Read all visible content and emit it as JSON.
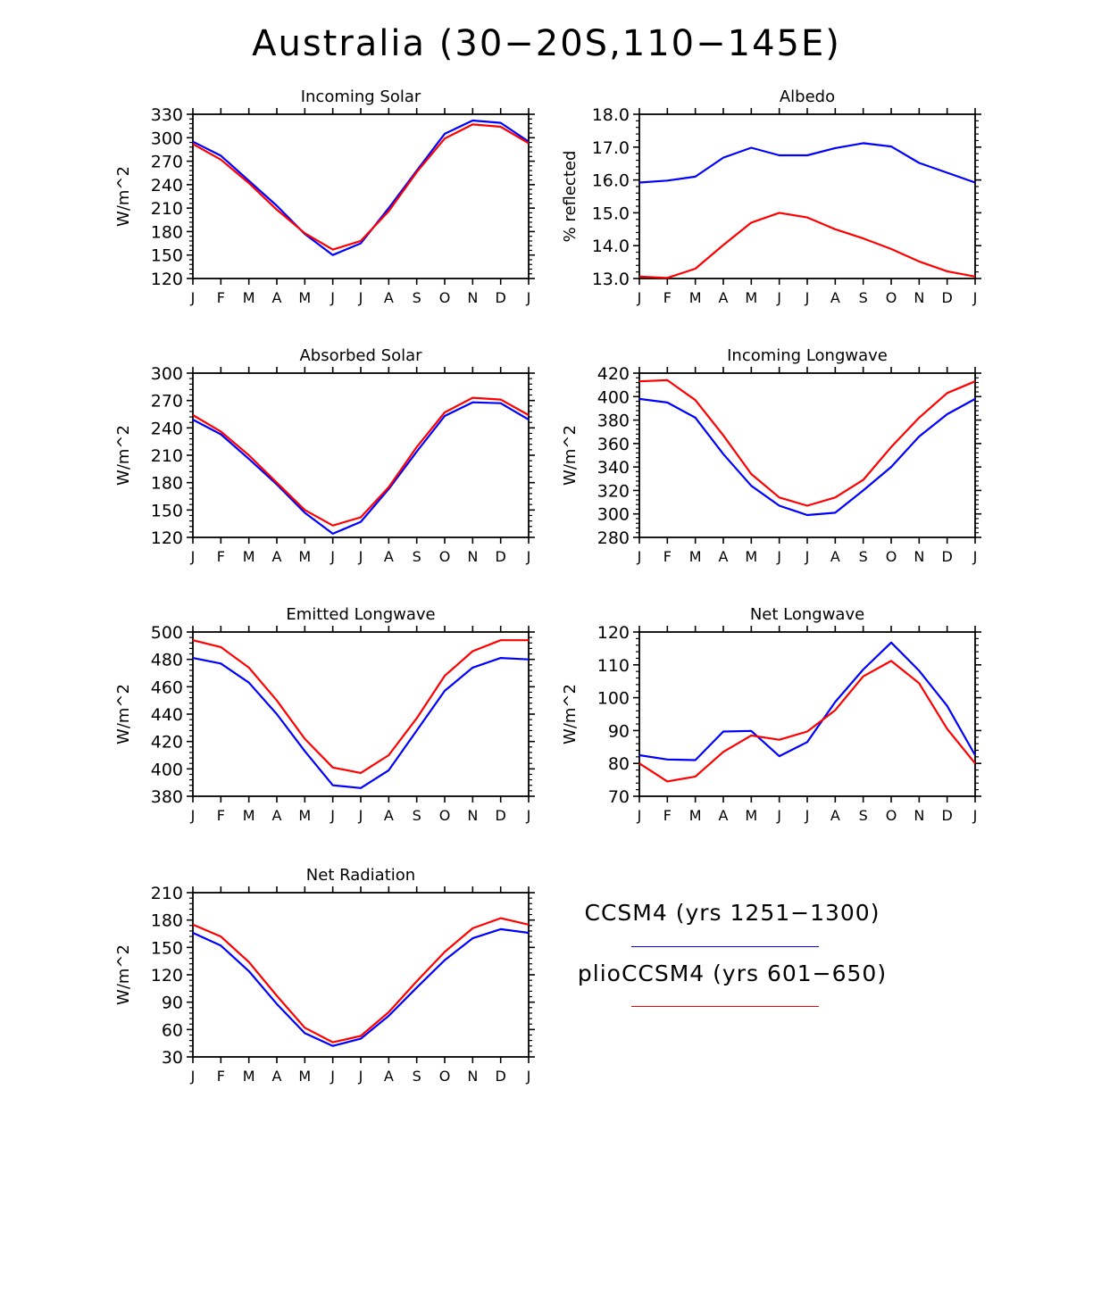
{
  "title": "Australia (30−20S,110−145E)",
  "colors": {
    "ccsm4": "#0000ff",
    "plio": "#ff0000",
    "axis": "#000000"
  },
  "legend": {
    "entries": [
      {
        "label": "CCSM4 (yrs 1251−1300)",
        "color": "#0000ff"
      },
      {
        "label": "plioCCSM4 (yrs 601−650)",
        "color": "#ff0000"
      }
    ]
  },
  "chart_data": [
    {
      "type": "line",
      "title": "Incoming Solar",
      "ylabel": "W/m^2",
      "xlabel": "",
      "categories": [
        "J",
        "F",
        "M",
        "A",
        "M",
        "J",
        "J",
        "A",
        "S",
        "O",
        "N",
        "D",
        "J"
      ],
      "ylim": [
        120,
        330
      ],
      "yticks": [
        120,
        150,
        180,
        210,
        240,
        270,
        300,
        330
      ],
      "ytick_labels": [
        "120",
        "150",
        "180",
        "210",
        "240",
        "270",
        "300",
        "330"
      ],
      "series": [
        {
          "name": "CCSM4 (yrs 1251−1300)",
          "color": "#0000ff",
          "values": [
            295,
            277,
            245,
            213,
            177,
            150,
            165,
            210,
            258,
            305,
            322,
            319,
            295
          ]
        },
        {
          "name": "plioCCSM4 (yrs 601−650)",
          "color": "#ff0000",
          "values": [
            292,
            272,
            242,
            208,
            178,
            157,
            168,
            206,
            256,
            299,
            317,
            314,
            293
          ]
        }
      ]
    },
    {
      "type": "line",
      "title": "Albedo",
      "ylabel": "% reflected",
      "xlabel": "",
      "categories": [
        "J",
        "F",
        "M",
        "A",
        "M",
        "J",
        "J",
        "A",
        "S",
        "O",
        "N",
        "D",
        "J"
      ],
      "ylim": [
        13.0,
        18.0
      ],
      "yticks": [
        13,
        14,
        15,
        16,
        17,
        18
      ],
      "ytick_labels": [
        "13.0",
        "14.0",
        "15.0",
        "16.0",
        "17.0",
        "18.0"
      ],
      "series": [
        {
          "name": "CCSM4 (yrs 1251−1300)",
          "color": "#0000ff",
          "values": [
            15.92,
            15.98,
            16.1,
            16.68,
            16.98,
            16.75,
            16.75,
            16.97,
            17.12,
            17.02,
            16.52,
            16.22,
            15.92
          ]
        },
        {
          "name": "plioCCSM4 (yrs 601−650)",
          "color": "#ff0000",
          "values": [
            13.06,
            13.02,
            13.3,
            14.02,
            14.7,
            15.0,
            14.86,
            14.5,
            14.22,
            13.9,
            13.52,
            13.22,
            13.06
          ]
        }
      ]
    },
    {
      "type": "line",
      "title": "Absorbed Solar",
      "ylabel": "W/m^2",
      "xlabel": "",
      "categories": [
        "J",
        "F",
        "M",
        "A",
        "M",
        "J",
        "J",
        "A",
        "S",
        "O",
        "N",
        "D",
        "J"
      ],
      "ylim": [
        120,
        300
      ],
      "yticks": [
        120,
        150,
        180,
        210,
        240,
        270,
        300
      ],
      "ytick_labels": [
        "120",
        "150",
        "180",
        "210",
        "240",
        "270",
        "300"
      ],
      "series": [
        {
          "name": "CCSM4 (yrs 1251−1300)",
          "color": "#0000ff",
          "values": [
            249,
            233,
            206,
            178,
            147,
            124,
            137,
            173,
            214,
            253,
            268,
            267,
            249
          ]
        },
        {
          "name": "plioCCSM4 (yrs 601−650)",
          "color": "#ff0000",
          "values": [
            254,
            236,
            210,
            180,
            150,
            133,
            142,
            175,
            219,
            257,
            273,
            271,
            254
          ]
        }
      ]
    },
    {
      "type": "line",
      "title": "Incoming Longwave",
      "ylabel": "W/m^2",
      "xlabel": "",
      "categories": [
        "J",
        "F",
        "M",
        "A",
        "M",
        "J",
        "J",
        "A",
        "S",
        "O",
        "N",
        "D",
        "J"
      ],
      "ylim": [
        280,
        420
      ],
      "yticks": [
        280,
        300,
        320,
        340,
        360,
        380,
        400,
        420
      ],
      "ytick_labels": [
        "280",
        "300",
        "320",
        "340",
        "360",
        "380",
        "400",
        "420"
      ],
      "series": [
        {
          "name": "CCSM4 (yrs 1251−1300)",
          "color": "#0000ff",
          "values": [
            398,
            395,
            382,
            351,
            324,
            307,
            299,
            301,
            320,
            340,
            366,
            385,
            398
          ]
        },
        {
          "name": "plioCCSM4 (yrs 601−650)",
          "color": "#ff0000",
          "values": [
            413,
            414,
            397,
            367,
            334,
            314,
            307,
            314,
            329,
            357,
            382,
            403,
            413
          ]
        }
      ]
    },
    {
      "type": "line",
      "title": "Emitted Longwave",
      "ylabel": "W/m^2",
      "xlabel": "",
      "categories": [
        "J",
        "F",
        "M",
        "A",
        "M",
        "J",
        "J",
        "A",
        "S",
        "O",
        "N",
        "D",
        "J"
      ],
      "ylim": [
        380,
        500
      ],
      "yticks": [
        380,
        400,
        420,
        440,
        460,
        480,
        500
      ],
      "ytick_labels": [
        "380",
        "400",
        "420",
        "440",
        "460",
        "480",
        "500"
      ],
      "series": [
        {
          "name": "CCSM4 (yrs 1251−1300)",
          "color": "#0000ff",
          "values": [
            481,
            477,
            463,
            440,
            413,
            388,
            386,
            399,
            428,
            457,
            474,
            481,
            480
          ]
        },
        {
          "name": "plioCCSM4 (yrs 601−650)",
          "color": "#ff0000",
          "values": [
            494,
            489,
            474,
            450,
            422,
            401,
            397,
            410,
            437,
            468,
            486,
            494,
            494
          ]
        }
      ]
    },
    {
      "type": "line",
      "title": "Net Longwave",
      "ylabel": "W/m^2",
      "xlabel": "",
      "categories": [
        "J",
        "F",
        "M",
        "A",
        "M",
        "J",
        "J",
        "A",
        "S",
        "O",
        "N",
        "D",
        "J"
      ],
      "ylim": [
        70,
        120
      ],
      "yticks": [
        70,
        80,
        90,
        100,
        110,
        120
      ],
      "ytick_labels": [
        "70",
        "80",
        "90",
        "100",
        "110",
        "120"
      ],
      "series": [
        {
          "name": "CCSM4 (yrs 1251−1300)",
          "color": "#0000ff",
          "values": [
            82.5,
            81.2,
            81.0,
            89.7,
            89.9,
            82.2,
            86.5,
            98.7,
            108.6,
            116.8,
            108.2,
            97.5,
            82.5
          ]
        },
        {
          "name": "plioCCSM4 (yrs 601−650)",
          "color": "#ff0000",
          "values": [
            80.0,
            74.5,
            76.0,
            83.5,
            88.5,
            87.2,
            89.7,
            96.2,
            106.5,
            111.2,
            104.4,
            90.5,
            80.0
          ]
        }
      ]
    },
    {
      "type": "line",
      "title": "Net Radiation",
      "ylabel": "W/m^2",
      "xlabel": "",
      "categories": [
        "J",
        "F",
        "M",
        "A",
        "M",
        "J",
        "J",
        "A",
        "S",
        "O",
        "N",
        "D",
        "J"
      ],
      "ylim": [
        30,
        210
      ],
      "yticks": [
        30,
        60,
        90,
        120,
        150,
        180,
        210
      ],
      "ytick_labels": [
        "30",
        "60",
        "90",
        "120",
        "150",
        "180",
        "210"
      ],
      "series": [
        {
          "name": "CCSM4 (yrs 1251−1300)",
          "color": "#0000ff",
          "values": [
            166,
            152,
            124,
            88,
            56,
            42,
            50,
            75,
            106,
            136,
            160,
            170,
            166
          ]
        },
        {
          "name": "plioCCSM4 (yrs 601−650)",
          "color": "#ff0000",
          "values": [
            175,
            162,
            134,
            97,
            62,
            46,
            53,
            79,
            113,
            145,
            171,
            182,
            175
          ]
        }
      ]
    }
  ]
}
